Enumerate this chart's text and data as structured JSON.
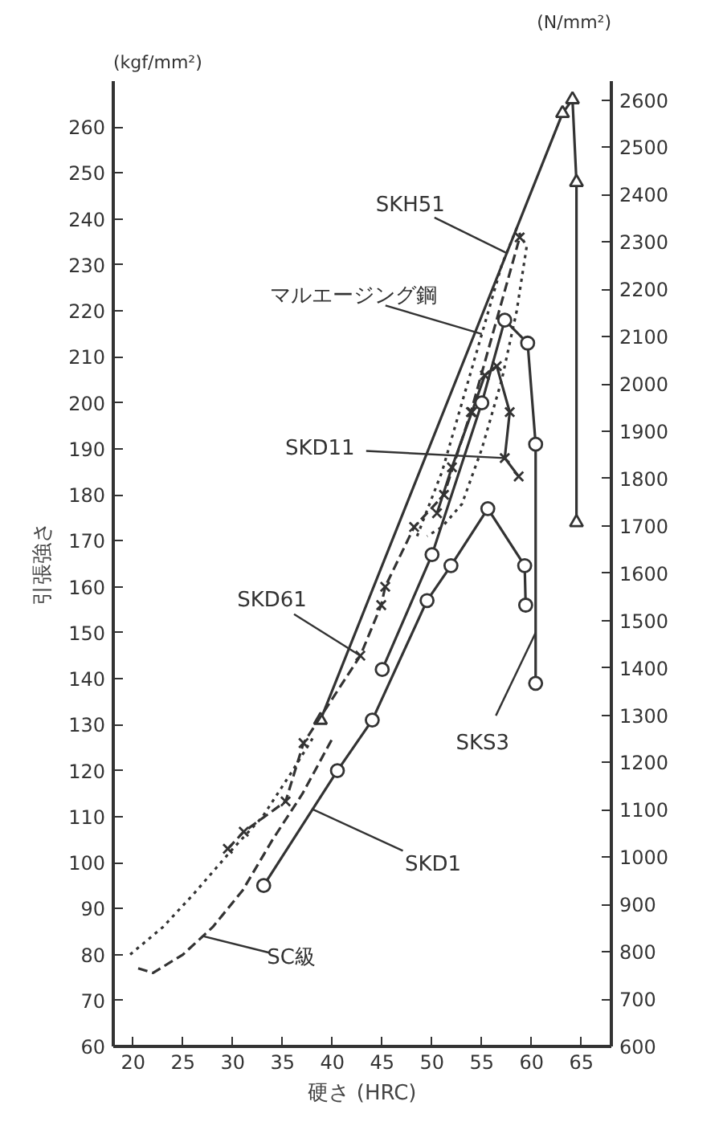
{
  "chart_data": {
    "type": "line",
    "xlabel": "硬さ (HRC)",
    "ylabel": "引張強さ",
    "xlim": [
      18,
      68
    ],
    "xticks": [
      20,
      25,
      30,
      35,
      40,
      45,
      50,
      55,
      60,
      65
    ],
    "ylim": [
      60,
      270
    ],
    "yticks": [
      60,
      70,
      80,
      90,
      100,
      110,
      120,
      130,
      140,
      150,
      160,
      170,
      180,
      190,
      200,
      210,
      220,
      230,
      240,
      250,
      260
    ],
    "y2lim": [
      600,
      2640
    ],
    "y2ticks": [
      600,
      700,
      800,
      900,
      1000,
      1100,
      1200,
      1300,
      1400,
      1500,
      1600,
      1700,
      1800,
      1900,
      2000,
      2100,
      2200,
      2300,
      2400,
      2500,
      2600
    ],
    "grid": false,
    "series": [
      {
        "color": "#333333",
        "marker": "triangle",
        "line_style": "solid",
        "x": [
          38.8,
          63.1,
          64.1,
          64.5,
          64.5
        ],
        "values": [
          131,
          263,
          266,
          248,
          174
        ]
      },
      {
        "color": "#333333",
        "marker": "cross",
        "line_style": "solid",
        "x": [
          50.5,
          52,
          54,
          55.3,
          56.5,
          57.8,
          57.3,
          58.7
        ],
        "values": [
          176,
          186,
          198,
          206,
          208,
          198,
          188,
          184
        ]
      },
      {
        "color": "#333333",
        "marker": "cross",
        "line_style": "dashed",
        "x": [
          29.5,
          31.1,
          35.3,
          37.1,
          42.8,
          44.9,
          45.3,
          48.2,
          51.2,
          53.9,
          58.8
        ],
        "values": [
          103,
          106.7,
          113.3,
          126,
          145,
          156,
          160,
          173,
          180,
          198,
          236
        ]
      },
      {
        "color": "#333333",
        "marker": "circle",
        "line_style": "solid",
        "x": [
          45,
          50,
          55,
          57.3,
          59.6,
          60.4,
          60.4
        ],
        "values": [
          142,
          167,
          200,
          218,
          213,
          191,
          139
        ]
      },
      {
        "color": "#333333",
        "marker": "circle",
        "line_style": "solid",
        "x": [
          33.1,
          40.5,
          44,
          49.5,
          51.9,
          55.6,
          59.3,
          59.4
        ],
        "values": [
          95,
          120,
          131,
          157,
          164.6,
          177,
          164.6,
          156
        ]
      },
      {
        "color": "#333333",
        "marker": "none",
        "line_style": "dotted",
        "x": [
          48.5,
          51,
          53,
          55,
          57,
          58.5,
          59.5,
          58.5,
          57,
          55,
          53,
          51,
          49.5
        ],
        "values": [
          171,
          185,
          200,
          215,
          230,
          238,
          234,
          220,
          205,
          190,
          178,
          173,
          171
        ]
      },
      {
        "color": "#333333",
        "marker": "none",
        "line_style": "dotted",
        "x": [
          19.7,
          23,
          26,
          30,
          33,
          36,
          38
        ],
        "values": [
          80,
          86,
          93,
          103,
          110,
          120,
          127
        ]
      },
      {
        "color": "#333333",
        "marker": "none",
        "line_style": "dashed",
        "x": [
          20.5,
          22,
          25,
          28,
          31,
          34,
          37,
          40
        ],
        "values": [
          77,
          76,
          80,
          86,
          94,
          105,
          115,
          127
        ]
      }
    ],
    "annotations": [
      "(kgf/mm²)",
      "(N/mm²)",
      {
        "text": "SKH51",
        "x": 57.5,
        "y": 232.6
      },
      {
        "text": "マルエージング鋼",
        "x": 55,
        "y": 215
      },
      {
        "text": "SKD11",
        "x": 57.3,
        "y": 188
      },
      {
        "text": "SKD61",
        "x": 42.8,
        "y": 145
      },
      {
        "text": "SKS3",
        "x": 60.4,
        "y": 150
      },
      {
        "text": "SKD1",
        "x": 38,
        "y": 111.6
      },
      {
        "text": "SC級",
        "x": 27,
        "y": 84
      }
    ]
  }
}
